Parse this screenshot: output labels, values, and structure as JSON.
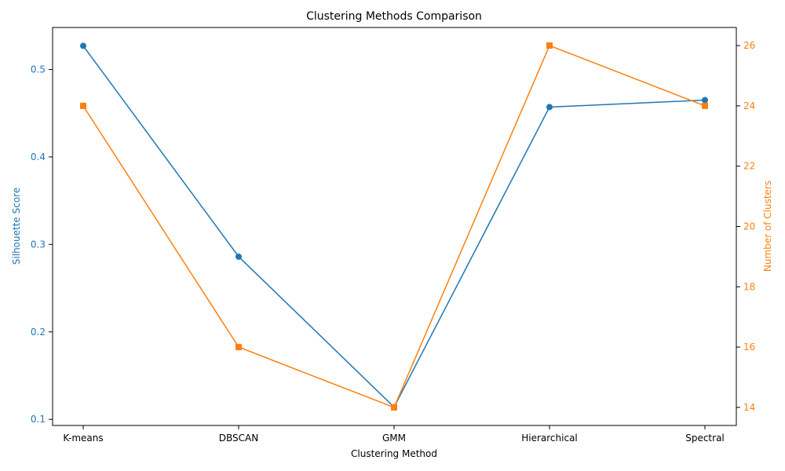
{
  "chart_data": {
    "type": "line",
    "title": "Clustering Methods Comparison",
    "xlabel": "Clustering Method",
    "categories": [
      "K-means",
      "DBSCAN",
      "GMM",
      "Hierarchical",
      "Spectral"
    ],
    "left_axis": {
      "label": "Silhouette Score",
      "color": "#1f77b4",
      "ylim": [
        0.093,
        0.548
      ],
      "ticks": [
        0.1,
        0.2,
        0.3,
        0.4,
        0.5
      ],
      "tick_labels": [
        "0.1",
        "0.2",
        "0.3",
        "0.4",
        "0.5"
      ]
    },
    "right_axis": {
      "label": "Number of Clusters",
      "color": "#ff7f0e",
      "ylim": [
        13.4,
        26.6
      ],
      "ticks": [
        14,
        16,
        18,
        20,
        22,
        24,
        26
      ],
      "tick_labels": [
        "14",
        "16",
        "18",
        "20",
        "22",
        "24",
        "26"
      ]
    },
    "series": [
      {
        "axis": "left",
        "marker": "circle",
        "color": "#1f77b4",
        "values": [
          0.527,
          0.286,
          0.114,
          0.457,
          0.465
        ]
      },
      {
        "axis": "right",
        "marker": "square",
        "color": "#ff7f0e",
        "values": [
          24,
          16,
          14,
          26,
          24
        ]
      }
    ],
    "grid": false
  }
}
